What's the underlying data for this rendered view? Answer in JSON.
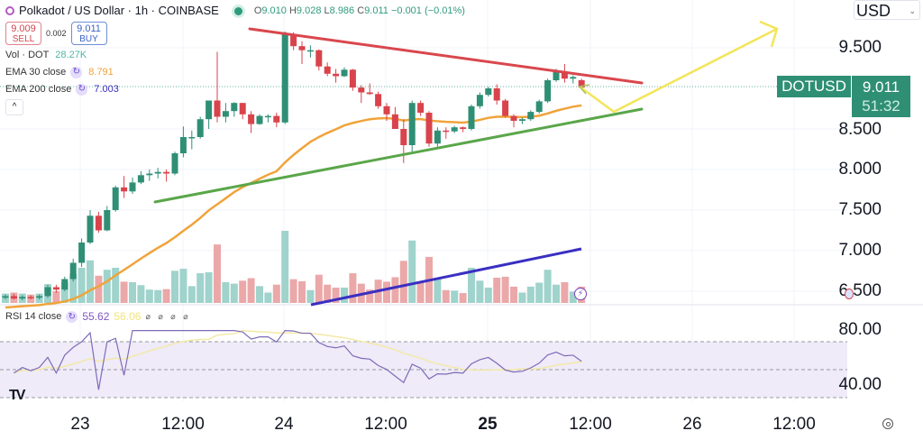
{
  "header": {
    "symbol_title": "Polkadot / US Dollar · 1h · COINBASE",
    "ohlc": {
      "open_label": "O",
      "open": "9.010",
      "high_label": "H",
      "high": "9.028",
      "low_label": "L",
      "low": "8.986",
      "close_label": "C",
      "close": "9.011",
      "change": "−0.001 (−0.01%)"
    },
    "sell": {
      "price": "9.009",
      "label": "SELL"
    },
    "spread": "0.002",
    "buy": {
      "price": "9.011",
      "label": "BUY"
    }
  },
  "indicators": {
    "volume": {
      "label": "Vol · DOT",
      "value": "28.27K",
      "color": "#26a69a"
    },
    "ema30": {
      "label": "EMA 30 close",
      "value": "8.791",
      "color": "#f0a33a"
    },
    "ema200": {
      "label": "EMA 200 close",
      "value": "7.003",
      "color": "#3a2fc2"
    },
    "collapse_glyph": "^"
  },
  "price_axis": {
    "currency": "USD",
    "ticks": [
      "9.500",
      "8.500",
      "8.000",
      "7.500",
      "7.000",
      "6.500"
    ],
    "symbol_tag": "DOTUSD",
    "last_price": "9.011",
    "countdown": "51:32"
  },
  "rsi": {
    "label": "RSI 14 close",
    "value": "55.62",
    "ma_value": "56.06",
    "hidden_glyphs": "⌀ ⌀ ⌀ ⌀",
    "ticks": [
      "80.00",
      "40.00"
    ]
  },
  "time_axis": {
    "labels": [
      {
        "text": "23",
        "x": 89,
        "bold": false
      },
      {
        "text": "12:00",
        "x": 203,
        "bold": false
      },
      {
        "text": "24",
        "x": 315,
        "bold": false
      },
      {
        "text": "12:00",
        "x": 428,
        "bold": false
      },
      {
        "text": "25",
        "x": 541,
        "bold": true
      },
      {
        "text": "12:00",
        "x": 655,
        "bold": false
      },
      {
        "text": "26",
        "x": 768,
        "bold": false
      },
      {
        "text": "12:00",
        "x": 881,
        "bold": false
      }
    ]
  },
  "branding": {
    "logo": "TV"
  },
  "colors": {
    "up": "#2f8f75",
    "down": "#d9434b",
    "vol_up": "#9fd3cc",
    "vol_down": "#eba8a9",
    "resistance": "#d9474d",
    "support": "#5aa64a",
    "projection": "#f2e55a",
    "rsi_line": "#7e6bb8",
    "rsi_band": "#efebf8"
  },
  "chart_data": {
    "type": "candlestick",
    "title": "Polkadot / US Dollar · 1h · COINBASE",
    "xlabel": "",
    "ylabel": "USD",
    "ylim": [
      6.4,
      9.8
    ],
    "x_ticks": [
      "23",
      "12:00",
      "24",
      "12:00",
      "25",
      "12:00",
      "26",
      "12:00"
    ],
    "y_ticks": [
      9.5,
      8.5,
      8.0,
      7.5,
      7.0,
      6.5
    ],
    "last": {
      "open": 9.01,
      "high": 9.028,
      "low": 8.986,
      "close": 9.011,
      "change": -0.001,
      "change_pct": -0.01
    },
    "candles": [
      {
        "o": 6.42,
        "h": 6.46,
        "l": 6.4,
        "c": 6.44
      },
      {
        "o": 6.44,
        "h": 6.47,
        "l": 6.4,
        "c": 6.41
      },
      {
        "o": 6.41,
        "h": 6.45,
        "l": 6.39,
        "c": 6.43
      },
      {
        "o": 6.43,
        "h": 6.45,
        "l": 6.4,
        "c": 6.42
      },
      {
        "o": 6.42,
        "h": 6.46,
        "l": 6.4,
        "c": 6.44
      },
      {
        "o": 6.44,
        "h": 6.58,
        "l": 6.42,
        "c": 6.55
      },
      {
        "o": 6.55,
        "h": 6.58,
        "l": 6.48,
        "c": 6.52
      },
      {
        "o": 6.52,
        "h": 6.68,
        "l": 6.5,
        "c": 6.65
      },
      {
        "o": 6.65,
        "h": 6.9,
        "l": 6.62,
        "c": 6.85
      },
      {
        "o": 6.85,
        "h": 7.15,
        "l": 6.8,
        "c": 7.1
      },
      {
        "o": 7.1,
        "h": 7.5,
        "l": 7.08,
        "c": 7.43
      },
      {
        "o": 7.43,
        "h": 7.48,
        "l": 7.22,
        "c": 7.25
      },
      {
        "o": 7.25,
        "h": 7.55,
        "l": 7.24,
        "c": 7.5
      },
      {
        "o": 7.5,
        "h": 7.8,
        "l": 7.48,
        "c": 7.78
      },
      {
        "o": 7.78,
        "h": 7.92,
        "l": 7.65,
        "c": 7.73
      },
      {
        "o": 7.73,
        "h": 7.9,
        "l": 7.7,
        "c": 7.84
      },
      {
        "o": 7.84,
        "h": 7.98,
        "l": 7.82,
        "c": 7.93
      },
      {
        "o": 7.93,
        "h": 8.0,
        "l": 7.86,
        "c": 7.95
      },
      {
        "o": 7.95,
        "h": 8.02,
        "l": 7.89,
        "c": 7.97
      },
      {
        "o": 7.97,
        "h": 8.0,
        "l": 7.85,
        "c": 7.95
      },
      {
        "o": 7.95,
        "h": 8.22,
        "l": 7.93,
        "c": 8.2
      },
      {
        "o": 8.2,
        "h": 8.53,
        "l": 8.15,
        "c": 8.4
      },
      {
        "o": 8.4,
        "h": 8.48,
        "l": 8.25,
        "c": 8.4
      },
      {
        "o": 8.4,
        "h": 8.65,
        "l": 8.38,
        "c": 8.62
      },
      {
        "o": 8.62,
        "h": 8.78,
        "l": 8.5,
        "c": 8.85
      },
      {
        "o": 8.85,
        "h": 9.45,
        "l": 8.58,
        "c": 8.65
      },
      {
        "o": 8.65,
        "h": 8.82,
        "l": 8.58,
        "c": 8.72
      },
      {
        "o": 8.72,
        "h": 8.83,
        "l": 8.65,
        "c": 8.82
      },
      {
        "o": 8.82,
        "h": 8.82,
        "l": 8.62,
        "c": 8.68
      },
      {
        "o": 8.68,
        "h": 8.72,
        "l": 8.45,
        "c": 8.56
      },
      {
        "o": 8.56,
        "h": 8.68,
        "l": 8.55,
        "c": 8.66
      },
      {
        "o": 8.66,
        "h": 8.68,
        "l": 8.58,
        "c": 8.66
      },
      {
        "o": 8.66,
        "h": 8.7,
        "l": 8.52,
        "c": 8.58
      },
      {
        "o": 8.58,
        "h": 9.7,
        "l": 8.56,
        "c": 9.67
      },
      {
        "o": 9.67,
        "h": 9.69,
        "l": 9.47,
        "c": 9.52
      },
      {
        "o": 9.52,
        "h": 9.58,
        "l": 9.3,
        "c": 9.47
      },
      {
        "o": 9.47,
        "h": 9.53,
        "l": 9.38,
        "c": 9.47
      },
      {
        "o": 9.47,
        "h": 9.48,
        "l": 9.22,
        "c": 9.27
      },
      {
        "o": 9.27,
        "h": 9.32,
        "l": 9.15,
        "c": 9.18
      },
      {
        "o": 9.18,
        "h": 9.24,
        "l": 9.07,
        "c": 9.15
      },
      {
        "o": 9.15,
        "h": 9.26,
        "l": 9.14,
        "c": 9.23
      },
      {
        "o": 9.23,
        "h": 9.24,
        "l": 8.97,
        "c": 9.01
      },
      {
        "o": 9.01,
        "h": 9.04,
        "l": 8.82,
        "c": 8.95
      },
      {
        "o": 8.95,
        "h": 9.06,
        "l": 8.92,
        "c": 8.93
      },
      {
        "o": 8.93,
        "h": 8.96,
        "l": 8.75,
        "c": 8.78
      },
      {
        "o": 8.78,
        "h": 8.82,
        "l": 8.6,
        "c": 8.68
      },
      {
        "o": 8.68,
        "h": 8.77,
        "l": 8.54,
        "c": 8.5
      },
      {
        "o": 8.5,
        "h": 8.62,
        "l": 8.08,
        "c": 8.3
      },
      {
        "o": 8.3,
        "h": 8.85,
        "l": 8.22,
        "c": 8.82
      },
      {
        "o": 8.82,
        "h": 8.85,
        "l": 8.66,
        "c": 8.7
      },
      {
        "o": 8.7,
        "h": 8.72,
        "l": 8.28,
        "c": 8.32
      },
      {
        "o": 8.32,
        "h": 8.52,
        "l": 8.28,
        "c": 8.48
      },
      {
        "o": 8.48,
        "h": 8.52,
        "l": 8.38,
        "c": 8.47
      },
      {
        "o": 8.47,
        "h": 8.54,
        "l": 8.45,
        "c": 8.52
      },
      {
        "o": 8.52,
        "h": 8.53,
        "l": 8.46,
        "c": 8.5
      },
      {
        "o": 8.5,
        "h": 8.8,
        "l": 8.48,
        "c": 8.78
      },
      {
        "o": 8.78,
        "h": 8.95,
        "l": 8.75,
        "c": 8.92
      },
      {
        "o": 8.92,
        "h": 9.02,
        "l": 8.9,
        "c": 9.0
      },
      {
        "o": 9.0,
        "h": 9.05,
        "l": 8.8,
        "c": 8.85
      },
      {
        "o": 8.85,
        "h": 8.87,
        "l": 8.64,
        "c": 8.66
      },
      {
        "o": 8.66,
        "h": 8.68,
        "l": 8.52,
        "c": 8.6
      },
      {
        "o": 8.6,
        "h": 8.64,
        "l": 8.56,
        "c": 8.62
      },
      {
        "o": 8.62,
        "h": 8.73,
        "l": 8.6,
        "c": 8.71
      },
      {
        "o": 8.71,
        "h": 8.86,
        "l": 8.69,
        "c": 8.84
      },
      {
        "o": 8.84,
        "h": 9.12,
        "l": 8.82,
        "c": 9.1
      },
      {
        "o": 9.1,
        "h": 9.24,
        "l": 9.08,
        "c": 9.2
      },
      {
        "o": 9.2,
        "h": 9.3,
        "l": 9.07,
        "c": 9.12
      },
      {
        "o": 9.12,
        "h": 9.16,
        "l": 9.06,
        "c": 9.14
      },
      {
        "o": 9.1,
        "h": 9.12,
        "l": 8.99,
        "c": 9.01
      }
    ],
    "series": [
      {
        "name": "EMA 30 close",
        "last": 8.791
      },
      {
        "name": "EMA 200 close",
        "last": 7.003
      },
      {
        "name": "Vol · DOT",
        "last": "28.27K"
      },
      {
        "name": "RSI 14 close",
        "last": 55.62,
        "ma": 56.06
      }
    ],
    "annotations": [
      {
        "type": "trendline",
        "name": "resistance",
        "from": [
          277,
          32
        ],
        "to": [
          712,
          92
        ]
      },
      {
        "type": "trendline",
        "name": "support",
        "from": [
          172,
          224
        ],
        "to": [
          712,
          121
        ]
      },
      {
        "type": "projection-arrow",
        "name": "breakout-projection",
        "points": [
          [
            643,
            96
          ],
          [
            681,
            124
          ],
          [
            862,
            32
          ]
        ]
      }
    ]
  }
}
